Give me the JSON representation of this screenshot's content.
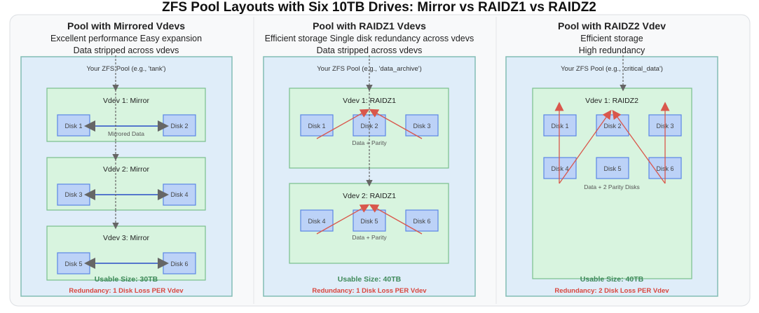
{
  "title": "ZFS Pool Layouts with Six 10TB Drives: Mirror vs RAIDZ1 vs RAIDZ2",
  "colors": {
    "pool_fill": "#dfedf9",
    "vdev_fill": "#d8f4df",
    "disk_fill": "#bcd2f7",
    "usable": "#3f8a5a",
    "redundancy": "#d9463e",
    "parity_arrow": "#d9574c"
  },
  "columns": [
    {
      "heading": "Pool with Mirrored Vdevs",
      "lines": [
        "Excellent performance Easy expansion",
        "Data stripped across vdevs"
      ],
      "pool_label": "Your ZFS Pool (e.g., 'tank')",
      "vdevs": [
        {
          "label": "Vdev 1: Mirror",
          "disks": [
            "Disk 1",
            "Disk 2"
          ],
          "note": "Mirrored Data"
        },
        {
          "label": "Vdev 2: Mirror",
          "disks": [
            "Disk 3",
            "Disk 4"
          ]
        },
        {
          "label": "Vdev 3: Mirror",
          "disks": [
            "Disk 5",
            "Disk 6"
          ]
        }
      ],
      "usable": "Usable Size: 30TB",
      "redundancy": "Redundancy: 1 Disk Loss PER Vdev"
    },
    {
      "heading": "Pool with RAIDZ1 Vdevs",
      "lines": [
        "Efficient storage  Single disk redundancy across vdevs",
        "Data stripped across vdevs"
      ],
      "pool_label": "Your ZFS Pool (e.g., 'data_archive')",
      "vdevs": [
        {
          "label": "Vdev 1: RAIDZ1",
          "disks": [
            "Disk 1",
            "Disk 2",
            "Disk 3"
          ],
          "note": "Data + Parity"
        },
        {
          "label": "Vdev 2: RAIDZ1",
          "disks": [
            "Disk 4",
            "Disk 5",
            "Disk 6"
          ],
          "note": "Data + Parity"
        }
      ],
      "usable": "Usable Size: 40TB",
      "redundancy": "Redundancy: 1 Disk Loss PER Vdev"
    },
    {
      "heading": "Pool with RAIDZ2 Vdev",
      "lines": [
        "Efficient storage",
        "High redundancy"
      ],
      "pool_label": "Your ZFS Pool (e.g., 'critical_data')",
      "vdevs": [
        {
          "label": "Vdev 1: RAIDZ2",
          "disks": [
            "Disk 1",
            "Disk 2",
            "Disk 3",
            "Disk 4",
            "Disk 5",
            "Disk 6"
          ],
          "note": "Data + 2 Parity Disks"
        }
      ],
      "usable": "Usable Size: 40TB",
      "redundancy": "Redundancy: 2 Disk Loss PER Vdev"
    }
  ]
}
